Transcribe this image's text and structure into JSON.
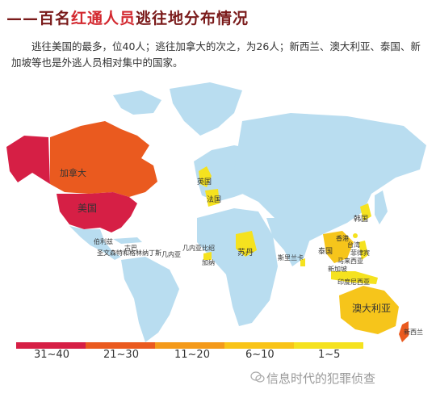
{
  "header": {
    "dash": "——",
    "title_part1": "百名",
    "title_part2": "红通人员",
    "title_part3": "逃往地分布情况"
  },
  "description": "逃往美国的最多，位40人；逃往加拿大的次之，为26人；新西兰、澳大利亚、泰国、新加坡等也是外逃人员相对集中的国家。",
  "map_labels": {
    "canada": "加拿大",
    "usa": "美国",
    "uk": "英国",
    "france": "法国",
    "korea": "韩国",
    "sudan": "苏丹",
    "taiwan": "台湾",
    "hongkong": "香港",
    "myanmar": "缅甸",
    "philippines": "菲律宾",
    "thailand": "泰国",
    "malaysia": "马来西亚",
    "singapore": "新加坡",
    "indonesia": "印度尼西亚",
    "srilanka": "斯里兰卡",
    "australia": "澳大利亚",
    "newzealand": "新西兰",
    "cuba": "古巴",
    "belize": "伯利兹",
    "stvincent": "圣文森特和格林纳丁斯",
    "guinea": "几内亚",
    "sierraleone": "几内亚比绍",
    "caribbean": "特立尼达和多巴哥",
    "ghana": "加纳"
  },
  "legend": [
    {
      "label": "31~40",
      "color": "#d61f45"
    },
    {
      "label": "21~30",
      "color": "#ea5a1f"
    },
    {
      "label": "11~20",
      "color": "#f49a1a"
    },
    {
      "label": "6~10",
      "color": "#f9c418"
    },
    {
      "label": "1~5",
      "color": "#f5e21f"
    }
  ],
  "colors": {
    "ocean": "#ffffff",
    "land": "#b9ddf0",
    "usa": "#d61f45",
    "canada": "#ea5a1f",
    "alaska": "#d61f45",
    "yellow": "#f5e21f",
    "gold": "#f6c51b"
  },
  "watermark": "信息时代的犯罪侦查"
}
